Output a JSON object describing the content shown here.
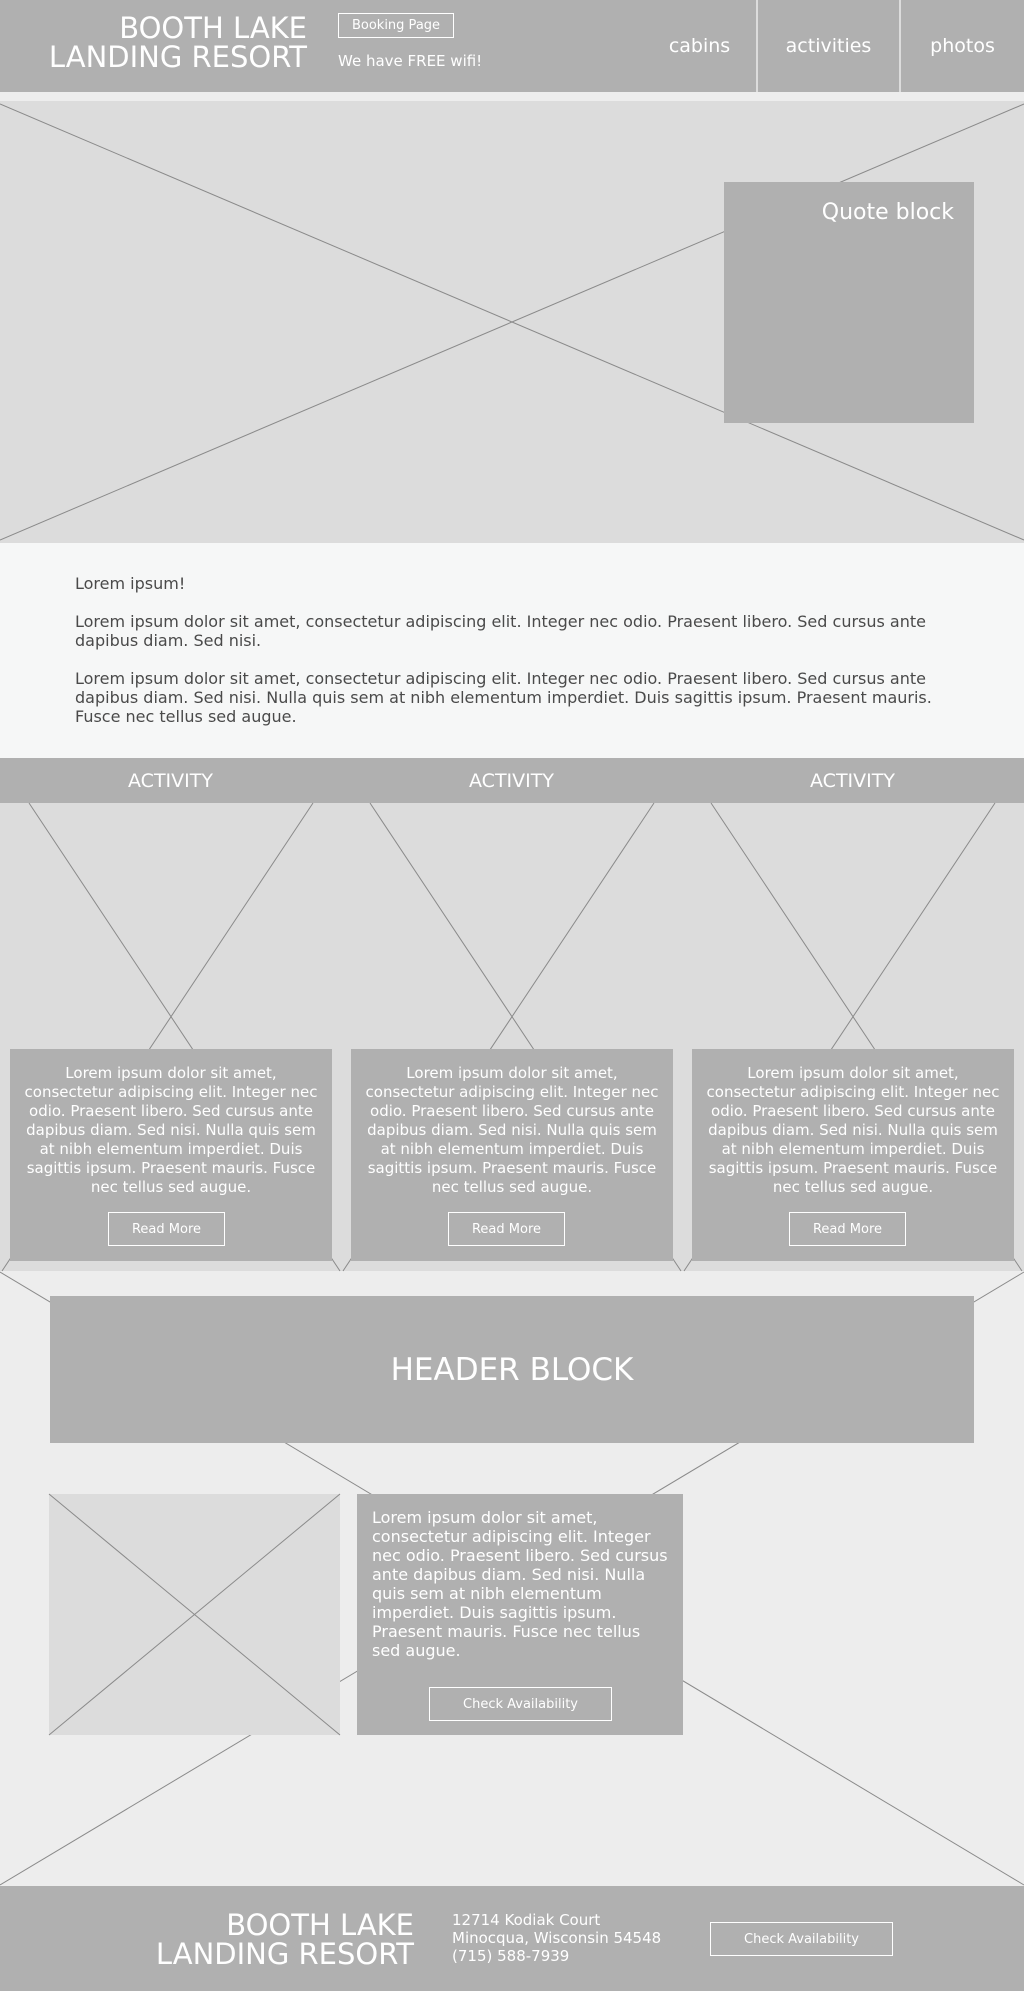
{
  "header": {
    "logo_line1": "BOOTH LAKE",
    "logo_line2": "LANDING RESORT",
    "booking_label": "Booking Page",
    "wifi_text": "We have FREE wifi!",
    "nav": [
      "cabins",
      "activities",
      "photos"
    ]
  },
  "hero": {
    "quote_title": "Quote block"
  },
  "intro": {
    "heading": "Lorem ipsum!",
    "para1": "Lorem ipsum dolor sit amet, consectetur adipiscing elit. Integer nec odio. Praesent libero. Sed cursus ante dapibus diam. Sed nisi.",
    "para2": "Lorem ipsum dolor sit amet, consectetur adipiscing elit. Integer nec odio. Praesent libero. Sed cursus ante dapibus diam. Sed nisi. Nulla quis sem at nibh elementum imperdiet. Duis sagittis ipsum. Praesent mauris. Fusce nec tellus sed augue."
  },
  "activities": [
    {
      "title": "ACTIVITY",
      "text": "Lorem ipsum dolor sit amet, consectetur adipiscing elit. Integer nec odio. Praesent libero. Sed cursus ante dapibus diam. Sed nisi. Nulla quis sem at nibh elementum imperdiet. Duis sagittis ipsum. Praesent mauris. Fusce nec tellus sed augue.",
      "button": "Read More"
    },
    {
      "title": "ACTIVITY",
      "text": "Lorem ipsum dolor sit amet, consectetur adipiscing elit. Integer nec odio. Praesent libero. Sed cursus ante dapibus diam. Sed nisi. Nulla quis sem at nibh elementum imperdiet. Duis sagittis ipsum. Praesent mauris. Fusce nec tellus sed augue.",
      "button": "Read More"
    },
    {
      "title": "ACTIVITY",
      "text": "Lorem ipsum dolor sit amet, consectetur adipiscing elit. Integer nec odio. Praesent libero. Sed cursus ante dapibus diam. Sed nisi. Nulla quis sem at nibh elementum imperdiet. Duis sagittis ipsum. Praesent mauris. Fusce nec tellus sed augue.",
      "button": "Read More"
    }
  ],
  "feature": {
    "header_block": "HEADER BLOCK",
    "text": "Lorem ipsum dolor sit amet, consectetur adipiscing elit. Integer nec odio. Praesent libero. Sed cursus ante dapibus diam. Sed nisi. Nulla quis sem at nibh elementum imperdiet. Duis sagittis ipsum. Praesent mauris. Fusce nec tellus sed augue.",
    "button": "Check Availability"
  },
  "footer": {
    "logo_line1": "BOOTH LAKE",
    "logo_line2": "LANDING RESORT",
    "address_line1": "12714 Kodiak Court",
    "address_line2": "Minocqua, Wisconsin 54548",
    "phone": "(715) 588-7939",
    "button": "Check Availability"
  },
  "colors": {
    "block": "#b0b0b0",
    "placeholder": "#dcdcdc",
    "page": "#ededed",
    "intro_bg": "#f6f7f7",
    "text_dark": "#4a4a4a",
    "text_light": "#ffffff"
  }
}
